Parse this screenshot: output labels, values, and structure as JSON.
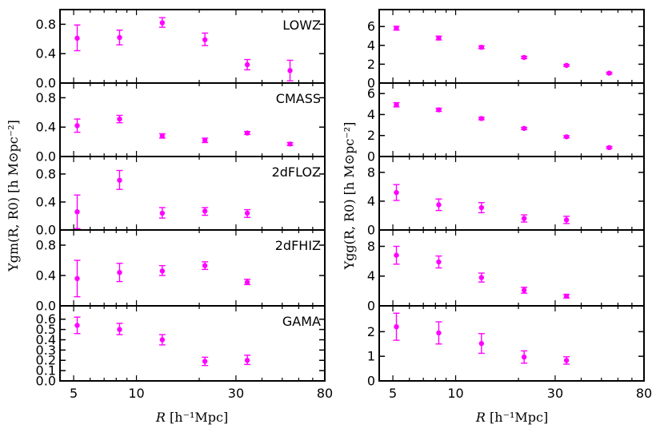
{
  "chart_data": [
    {
      "type": "scatter",
      "quantity": "Upsilon_gm",
      "ylabel": "Υgm(R, R0)   [h M⊙pc⁻²]",
      "xlabel": "R   [h⁻¹Mpc]",
      "x_scale": "log",
      "xlim": [
        4.3,
        80
      ],
      "x_ticks": [
        5,
        10,
        30,
        80
      ],
      "panels": [
        {
          "label": "LOWZ",
          "ylim": [
            0.0,
            1.0
          ],
          "y_ticks": [
            0.0,
            0.4,
            0.8
          ],
          "y_tick_labels": [
            "0.0",
            "0.4",
            "0.8"
          ],
          "points": [
            {
              "x": 5.2,
              "y": 0.61,
              "lo": 0.44,
              "hi": 0.79
            },
            {
              "x": 8.3,
              "y": 0.62,
              "lo": 0.52,
              "hi": 0.72
            },
            {
              "x": 13.3,
              "y": 0.82,
              "lo": 0.76,
              "hi": 0.89
            },
            {
              "x": 21.3,
              "y": 0.59,
              "lo": 0.51,
              "hi": 0.68
            },
            {
              "x": 34.0,
              "y": 0.25,
              "lo": 0.18,
              "hi": 0.32
            },
            {
              "x": 54.5,
              "y": 0.17,
              "lo": 0.03,
              "hi": 0.31
            }
          ]
        },
        {
          "label": "CMASS",
          "ylim": [
            0.0,
            1.0
          ],
          "y_ticks": [
            0.0,
            0.4,
            0.8
          ],
          "y_tick_labels": [
            "0.0",
            "0.4",
            "0.8"
          ],
          "points": [
            {
              "x": 5.2,
              "y": 0.42,
              "lo": 0.33,
              "hi": 0.51
            },
            {
              "x": 8.3,
              "y": 0.51,
              "lo": 0.46,
              "hi": 0.56
            },
            {
              "x": 13.3,
              "y": 0.28,
              "lo": 0.25,
              "hi": 0.31
            },
            {
              "x": 21.3,
              "y": 0.22,
              "lo": 0.19,
              "hi": 0.25
            },
            {
              "x": 34.0,
              "y": 0.32,
              "lo": 0.3,
              "hi": 0.34
            },
            {
              "x": 54.5,
              "y": 0.17,
              "lo": 0.15,
              "hi": 0.19
            }
          ]
        },
        {
          "label": "2dFLOZ",
          "ylim": [
            0.0,
            1.05
          ],
          "y_ticks": [
            0.0,
            0.4,
            0.8
          ],
          "y_tick_labels": [
            "0.0",
            "0.4",
            "0.8"
          ],
          "points": [
            {
              "x": 5.2,
              "y": 0.26,
              "lo": 0.02,
              "hi": 0.5
            },
            {
              "x": 8.3,
              "y": 0.71,
              "lo": 0.58,
              "hi": 0.85
            },
            {
              "x": 13.3,
              "y": 0.24,
              "lo": 0.17,
              "hi": 0.32
            },
            {
              "x": 21.3,
              "y": 0.27,
              "lo": 0.21,
              "hi": 0.32
            },
            {
              "x": 34.0,
              "y": 0.24,
              "lo": 0.18,
              "hi": 0.29
            }
          ]
        },
        {
          "label": "2dFHIZ",
          "ylim": [
            0.0,
            1.0
          ],
          "y_ticks": [
            0.0,
            0.4,
            0.8
          ],
          "y_tick_labels": [
            "0.0",
            "0.4",
            "0.8"
          ],
          "points": [
            {
              "x": 5.2,
              "y": 0.36,
              "lo": 0.12,
              "hi": 0.6
            },
            {
              "x": 8.3,
              "y": 0.44,
              "lo": 0.32,
              "hi": 0.56
            },
            {
              "x": 13.3,
              "y": 0.46,
              "lo": 0.4,
              "hi": 0.53
            },
            {
              "x": 21.3,
              "y": 0.53,
              "lo": 0.48,
              "hi": 0.58
            },
            {
              "x": 34.0,
              "y": 0.31,
              "lo": 0.28,
              "hi": 0.35
            }
          ]
        },
        {
          "label": "GAMA",
          "ylim": [
            0.0,
            0.73
          ],
          "y_ticks": [
            0.0,
            0.1,
            0.2,
            0.3,
            0.4,
            0.5,
            0.6
          ],
          "y_tick_labels": [
            "0.0",
            "0.1",
            "0.2",
            "0.3",
            "0.4",
            "0.5",
            "0.6"
          ],
          "points": [
            {
              "x": 5.2,
              "y": 0.54,
              "lo": 0.46,
              "hi": 0.62
            },
            {
              "x": 8.3,
              "y": 0.5,
              "lo": 0.45,
              "hi": 0.56
            },
            {
              "x": 13.3,
              "y": 0.4,
              "lo": 0.35,
              "hi": 0.45
            },
            {
              "x": 21.3,
              "y": 0.19,
              "lo": 0.15,
              "hi": 0.23
            },
            {
              "x": 34.0,
              "y": 0.2,
              "lo": 0.16,
              "hi": 0.25
            }
          ]
        }
      ]
    },
    {
      "type": "scatter",
      "quantity": "Upsilon_gg",
      "ylabel": "Υgg(R, R0)   [h M⊙pc⁻²]",
      "xlabel": "R   [h⁻¹Mpc]",
      "x_scale": "log",
      "xlim": [
        4.3,
        80
      ],
      "x_ticks": [
        5,
        10,
        30,
        80
      ],
      "panels": [
        {
          "ylim": [
            0,
            7.8
          ],
          "y_ticks": [
            0,
            2,
            4,
            6
          ],
          "y_tick_labels": [
            "0",
            "2",
            "4",
            "6"
          ],
          "points": [
            {
              "x": 5.2,
              "y": 5.82,
              "lo": 5.62,
              "hi": 6.02
            },
            {
              "x": 8.3,
              "y": 4.78,
              "lo": 4.58,
              "hi": 4.98
            },
            {
              "x": 13.3,
              "y": 3.8,
              "lo": 3.65,
              "hi": 3.95
            },
            {
              "x": 21.3,
              "y": 2.72,
              "lo": 2.6,
              "hi": 2.84
            },
            {
              "x": 34.0,
              "y": 1.88,
              "lo": 1.78,
              "hi": 1.98
            },
            {
              "x": 54.5,
              "y": 1.05,
              "lo": 0.95,
              "hi": 1.15
            }
          ]
        },
        {
          "ylim": [
            0,
            7.0
          ],
          "y_ticks": [
            0,
            2,
            4,
            6
          ],
          "y_tick_labels": [
            "0",
            "2",
            "4",
            "6"
          ],
          "points": [
            {
              "x": 5.2,
              "y": 4.93,
              "lo": 4.73,
              "hi": 5.13
            },
            {
              "x": 8.3,
              "y": 4.45,
              "lo": 4.3,
              "hi": 4.6
            },
            {
              "x": 13.3,
              "y": 3.62,
              "lo": 3.5,
              "hi": 3.74
            },
            {
              "x": 21.3,
              "y": 2.68,
              "lo": 2.58,
              "hi": 2.78
            },
            {
              "x": 34.0,
              "y": 1.88,
              "lo": 1.78,
              "hi": 1.98
            },
            {
              "x": 54.5,
              "y": 0.85,
              "lo": 0.75,
              "hi": 0.95
            }
          ]
        },
        {
          "ylim": [
            0,
            10.2
          ],
          "y_ticks": [
            0,
            4,
            8
          ],
          "y_tick_labels": [
            "0",
            "4",
            "8"
          ],
          "points": [
            {
              "x": 5.2,
              "y": 5.2,
              "lo": 4.1,
              "hi": 6.3
            },
            {
              "x": 8.3,
              "y": 3.5,
              "lo": 2.7,
              "hi": 4.3
            },
            {
              "x": 13.3,
              "y": 3.1,
              "lo": 2.4,
              "hi": 3.8
            },
            {
              "x": 21.3,
              "y": 1.6,
              "lo": 1.1,
              "hi": 2.1
            },
            {
              "x": 34.0,
              "y": 1.4,
              "lo": 0.9,
              "hi": 1.9
            }
          ]
        },
        {
          "ylim": [
            0,
            10.2
          ],
          "y_ticks": [
            0,
            4,
            8
          ],
          "y_tick_labels": [
            "0",
            "4",
            "8"
          ],
          "points": [
            {
              "x": 5.2,
              "y": 6.8,
              "lo": 5.6,
              "hi": 8.0
            },
            {
              "x": 8.3,
              "y": 5.9,
              "lo": 5.1,
              "hi": 6.7
            },
            {
              "x": 13.3,
              "y": 3.8,
              "lo": 3.2,
              "hi": 4.4
            },
            {
              "x": 21.3,
              "y": 2.1,
              "lo": 1.7,
              "hi": 2.5
            },
            {
              "x": 34.0,
              "y": 1.3,
              "lo": 1.05,
              "hi": 1.55
            }
          ]
        },
        {
          "ylim": [
            0,
            3.05
          ],
          "y_ticks": [
            0,
            1,
            2
          ],
          "y_tick_labels": [
            "0",
            "1",
            "2"
          ],
          "points": [
            {
              "x": 5.2,
              "y": 2.2,
              "lo": 1.65,
              "hi": 2.75
            },
            {
              "x": 8.3,
              "y": 1.95,
              "lo": 1.5,
              "hi": 2.4
            },
            {
              "x": 13.3,
              "y": 1.52,
              "lo": 1.12,
              "hi": 1.92
            },
            {
              "x": 21.3,
              "y": 0.97,
              "lo": 0.72,
              "hi": 1.22
            },
            {
              "x": 34.0,
              "y": 0.83,
              "lo": 0.68,
              "hi": 0.98
            }
          ]
        }
      ]
    }
  ],
  "style": {
    "marker_color": "#ff00ff",
    "axis_color": "#000000"
  }
}
